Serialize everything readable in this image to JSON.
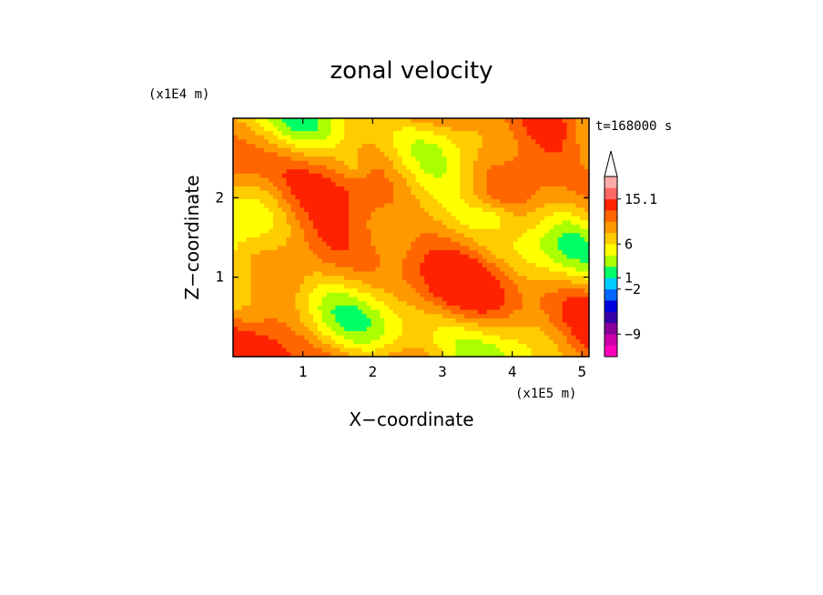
{
  "chart_data": {
    "type": "heatmap",
    "title": "zonal velocity",
    "xlabel": "X−coordinate",
    "ylabel": "Z−coordinate",
    "x_unit": "(x1E5 m)",
    "y_unit": "(x1E4 m)",
    "time_label": "t=168000 s",
    "xlim": [
      0,
      5.1
    ],
    "ylim": [
      0,
      3.0
    ],
    "x_ticks": [
      {
        "value": 1,
        "label": "1"
      },
      {
        "value": 2,
        "label": "2"
      },
      {
        "value": 3,
        "label": "3"
      },
      {
        "value": 4,
        "label": "4"
      },
      {
        "value": 5,
        "label": "5"
      }
    ],
    "y_ticks": [
      {
        "value": 1,
        "label": "1"
      },
      {
        "value": 2,
        "label": "2"
      }
    ],
    "colorbar": {
      "levels": [
        {
          "color": "#ff00bb"
        },
        {
          "color": "#cc00aa"
        },
        {
          "color": "#880099"
        },
        {
          "color": "#3300aa"
        },
        {
          "color": "#0000dd"
        },
        {
          "color": "#0066ff"
        },
        {
          "color": "#00ccff"
        },
        {
          "color": "#00ff66"
        },
        {
          "color": "#aaff00"
        },
        {
          "color": "#ffff00"
        },
        {
          "color": "#ffcc00"
        },
        {
          "color": "#ff9900"
        },
        {
          "color": "#ff6600"
        },
        {
          "color": "#ff2200"
        },
        {
          "color": "#ff6666"
        },
        {
          "color": "#ffaaaa"
        }
      ],
      "labels": [
        {
          "index": 2,
          "text": "−9"
        },
        {
          "index": 6,
          "text": "−2"
        },
        {
          "index": 7,
          "text": "1"
        },
        {
          "index": 10,
          "text": "6"
        },
        {
          "index": 14,
          "text": "15.1"
        }
      ],
      "extend_top": true,
      "top_color": "#ffffff"
    }
  }
}
